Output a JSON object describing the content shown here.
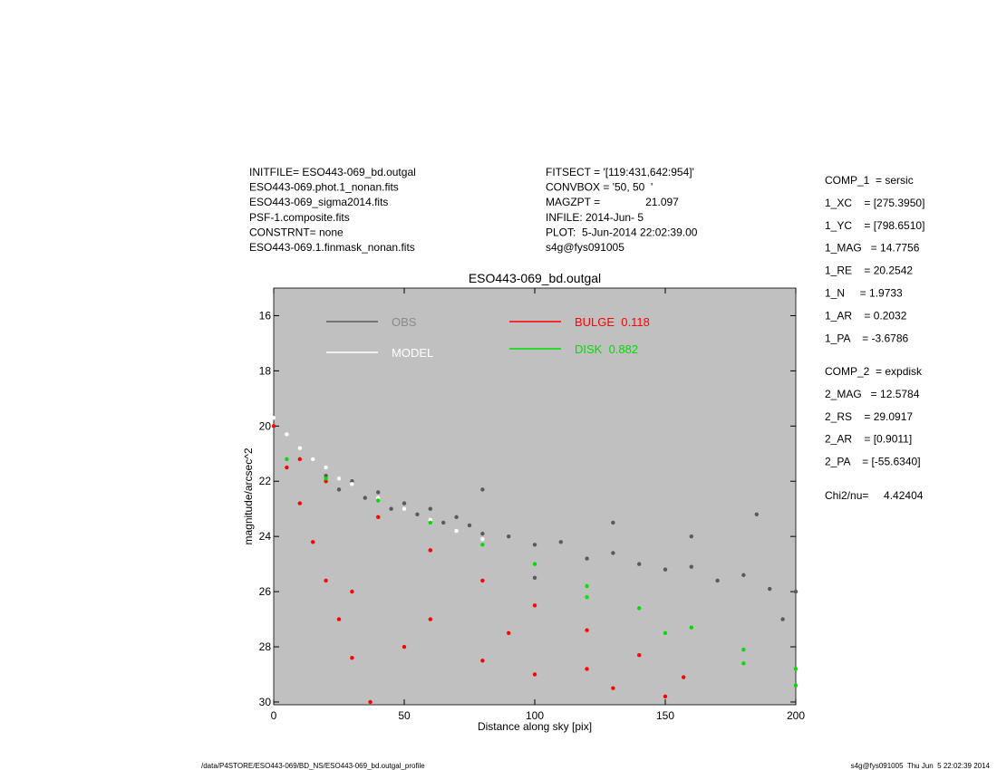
{
  "header": {
    "left": [
      "INITFILE= ESO443-069_bd.outgal",
      "ESO443-069.phot.1_nonan.fits",
      "ESO443-069_sigma2014.fits",
      "PSF-1.composite.fits",
      "CONSTRNT= none",
      "ESO443-069.1.finmask_nonan.fits"
    ],
    "middle": [
      "FITSECT = '[119:431,642:954]'",
      "CONVBOX = '50, 50  '",
      "MAGZPT =               21.097",
      "INFILE: 2014-Jun- 5",
      "PLOT:  5-Jun-2014 22:02:39.00",
      "s4g@fys091005"
    ]
  },
  "components": {
    "comp1": [
      "COMP_1  = sersic",
      "1_XC    = [275.3950]",
      "1_YC    = [798.6510]",
      "1_MAG   = 14.7756",
      "1_RE    = 20.2542",
      "1_N     = 1.9733",
      "1_AR    = 0.2032",
      "1_PA    = -3.6786"
    ],
    "comp2": [
      "COMP_2  = expdisk",
      "2_MAG   = 12.5784",
      "2_RS    = 29.0917",
      "2_AR    = [0.9011]",
      "2_PA    = [-55.6340]"
    ],
    "chi": "Chi2/nu=     4.42404"
  },
  "footer": {
    "left": "/data/P4STORE/ESO443-069/BD_NS/ESO443-069_bd.outgal_profile",
    "right": "s4g@fys091005  Thu Jun  5 22:02:39 2014"
  },
  "chart_data": {
    "type": "scatter",
    "title": "ESO443-069_bd.outgal",
    "x_label": "Distance along sky [pix]",
    "y_label": "magnitude/arcsec^2",
    "xlim": [
      0,
      200
    ],
    "ylim": [
      30.1,
      15
    ],
    "xticks": [
      0,
      50,
      100,
      150,
      200
    ],
    "yticks": [
      16,
      18,
      20,
      22,
      24,
      26,
      28,
      30
    ],
    "series": [
      {
        "name": "OBS",
        "color": "#5a5a5a",
        "x": [
          20,
          25,
          30,
          35,
          40,
          45,
          50,
          55,
          60,
          65,
          70,
          75,
          80,
          90,
          100,
          110,
          120,
          130,
          140,
          150,
          160,
          170,
          180,
          190,
          200,
          60,
          80,
          100,
          130,
          160,
          185,
          195
        ],
        "y": [
          21.8,
          22.3,
          22.0,
          22.6,
          22.4,
          23.0,
          22.8,
          23.2,
          23.0,
          23.5,
          23.3,
          23.6,
          23.9,
          24.0,
          24.3,
          24.2,
          24.8,
          24.6,
          25.0,
          25.2,
          25.1,
          25.6,
          25.4,
          25.9,
          26.0,
          24.5,
          22.3,
          25.5,
          23.5,
          24.0,
          23.2,
          27.0
        ]
      },
      {
        "name": "MODEL",
        "color": "#ffffff",
        "x": [
          0,
          5,
          10,
          15,
          20,
          25,
          30,
          40,
          50,
          60,
          70,
          80
        ],
        "y": [
          19.7,
          20.3,
          20.8,
          21.2,
          21.5,
          21.9,
          22.1,
          22.6,
          23.0,
          23.4,
          23.8,
          24.1
        ]
      },
      {
        "name": "BULGE  0.118",
        "color": "#ff0000",
        "x": [
          0,
          10,
          20,
          40,
          60,
          80,
          100,
          120,
          140,
          157,
          5,
          10,
          15,
          20,
          25,
          30,
          37,
          50,
          80,
          100,
          130,
          150,
          30,
          60,
          90,
          120
        ],
        "y": [
          20.0,
          21.2,
          22.0,
          23.3,
          24.5,
          25.6,
          26.5,
          27.4,
          28.3,
          29.1,
          21.5,
          22.8,
          24.2,
          25.6,
          27.0,
          28.4,
          30.0,
          28.0,
          28.5,
          29.0,
          29.5,
          29.8,
          26.0,
          27.0,
          27.5,
          28.8
        ]
      },
      {
        "name": "DISK  0.882",
        "color": "#00dd00",
        "x": [
          5,
          20,
          40,
          60,
          80,
          100,
          120,
          140,
          160,
          180,
          200,
          200,
          180,
          150,
          120
        ],
        "y": [
          21.2,
          21.9,
          22.7,
          23.5,
          24.3,
          25.0,
          25.8,
          26.6,
          27.3,
          28.1,
          28.8,
          29.4,
          28.6,
          27.5,
          26.2
        ]
      }
    ]
  }
}
